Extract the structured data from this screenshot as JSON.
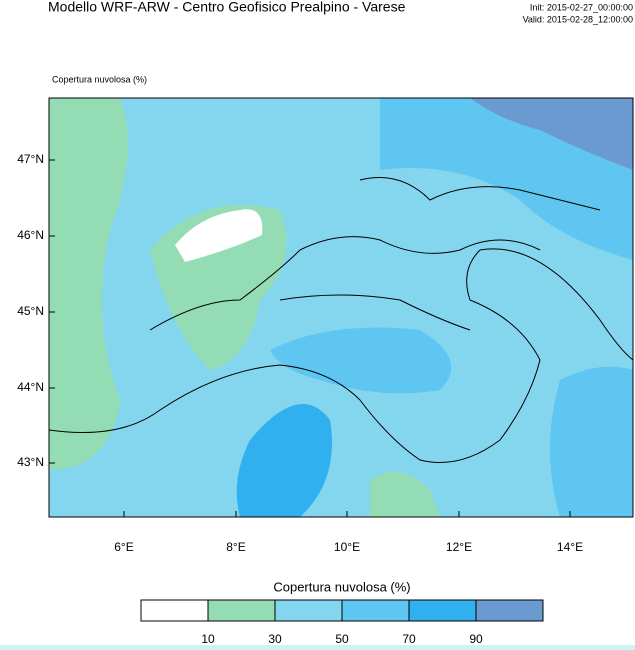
{
  "header": {
    "title": "Modello WRF-ARW  -  Centro Geofisico Prealpino  -  Varese",
    "init": "Init: 2015-02-27_00:00:00",
    "valid": "Valid: 2015-02-28_12:00:00"
  },
  "map": {
    "variable_label": "Copertura nuvolosa   (%)",
    "lat_labels": [
      "47°N",
      "46°N",
      "45°N",
      "44°N",
      "43°N"
    ],
    "lon_labels": [
      "6°E",
      "8°E",
      "10°E",
      "12°E",
      "14°E"
    ]
  },
  "colorbar": {
    "title": "Copertura nuvolosa  (%)",
    "colors": [
      "#ffffff",
      "#94dcb4",
      "#84d6ee",
      "#5ec6f0",
      "#30b0ee",
      "#6a9ad0"
    ],
    "ticks": [
      10,
      30,
      50,
      70,
      90
    ]
  }
}
